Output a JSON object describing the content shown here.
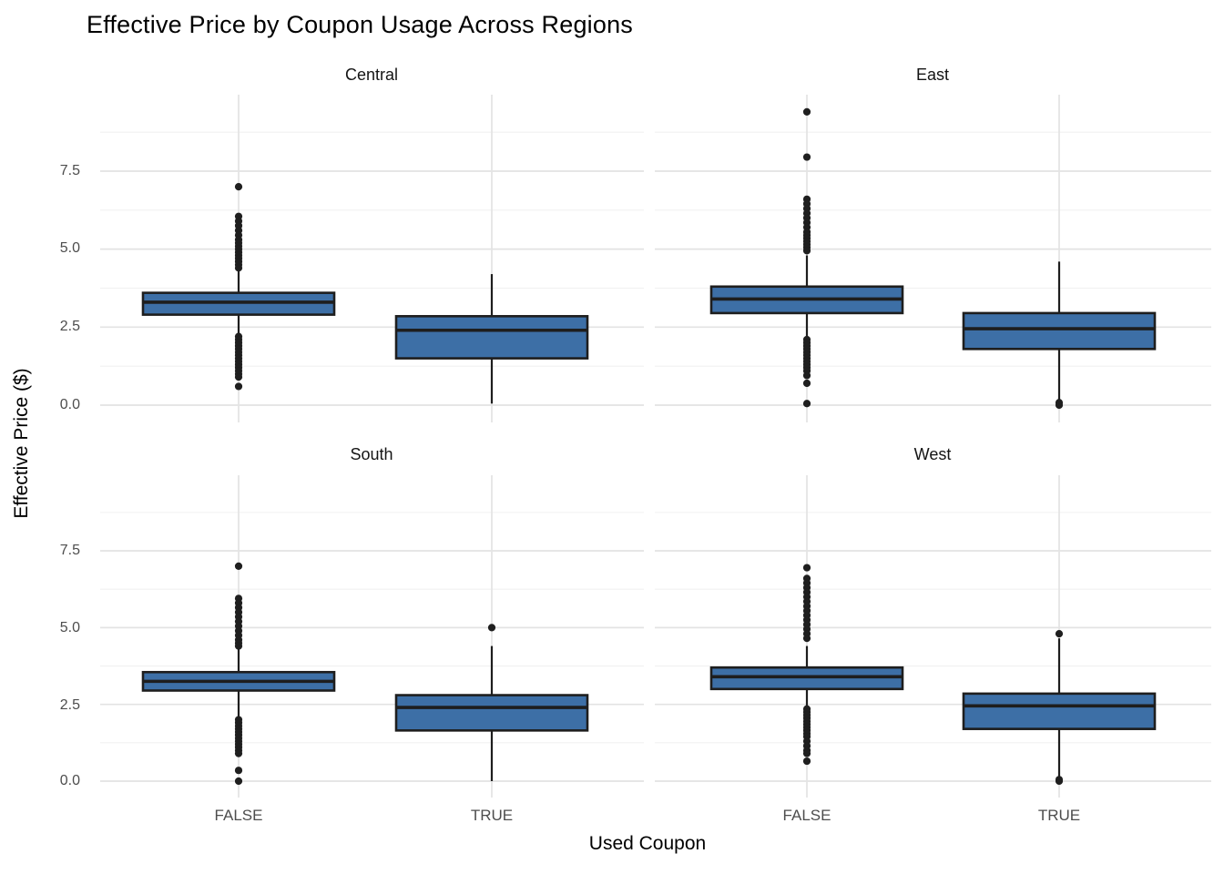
{
  "title": "Effective Price by Coupon Usage Across Regions",
  "x_axis_title": "Used Coupon",
  "y_axis_title": "Effective Price ($)",
  "x_categories": [
    "FALSE",
    "TRUE"
  ],
  "y_tick_labels": [
    "7.5",
    "5.0",
    "2.5",
    "0.0"
  ],
  "colors": {
    "box_fill": "#3d6fa6",
    "box_stroke": "#1e1e1e",
    "median": "#1e1e1e",
    "whisker": "#1e1e1e",
    "outlier": "#1f1f1f",
    "grid_major": "#e3e3e3",
    "grid_minor": "#f0f0f0",
    "text_dark": "#000000",
    "text_gray": "#4d4d4d"
  },
  "chart_data": {
    "type": "boxplot",
    "title": "Effective Price by Coupon Usage Across Regions",
    "xlabel": "Used Coupon",
    "ylabel": "Effective Price ($)",
    "categories": [
      "FALSE",
      "TRUE"
    ],
    "ylim": [
      -0.5,
      9.9
    ],
    "y_tick_values": [
      0.0,
      2.5,
      5.0,
      7.5
    ],
    "y_minor_values": [
      1.25,
      3.75,
      6.25,
      8.75
    ],
    "grid": true,
    "legend": "none",
    "facets": [
      {
        "name": "Central",
        "boxes": [
          {
            "category": "FALSE",
            "q1": 2.9,
            "median": 3.3,
            "q3": 3.6,
            "whisker_low": 2.25,
            "whisker_high": 4.3,
            "outliers": [
              7.0,
              6.05,
              5.9,
              5.75,
              5.6,
              5.45,
              5.3,
              5.2,
              5.1,
              5.0,
              4.9,
              4.8,
              4.7,
              4.6,
              4.5,
              4.4,
              2.2,
              2.1,
              2.0,
              1.9,
              1.8,
              1.7,
              1.6,
              1.5,
              1.4,
              1.3,
              1.2,
              1.1,
              1.0,
              0.9,
              0.6
            ]
          },
          {
            "category": "TRUE",
            "q1": 1.5,
            "median": 2.4,
            "q3": 2.85,
            "whisker_low": 0.05,
            "whisker_high": 4.2,
            "outliers": []
          }
        ]
      },
      {
        "name": "East",
        "boxes": [
          {
            "category": "FALSE",
            "q1": 2.95,
            "median": 3.4,
            "q3": 3.8,
            "whisker_low": 2.15,
            "whisker_high": 4.8,
            "outliers": [
              9.4,
              7.95,
              6.6,
              6.45,
              6.3,
              6.15,
              6.0,
              5.85,
              5.7,
              5.55,
              5.45,
              5.35,
              5.25,
              5.15,
              5.05,
              4.95,
              2.1,
              2.0,
              1.9,
              1.8,
              1.7,
              1.6,
              1.5,
              1.4,
              1.3,
              1.2,
              1.1,
              0.95,
              0.7,
              0.05
            ]
          },
          {
            "category": "TRUE",
            "q1": 1.8,
            "median": 2.45,
            "q3": 2.95,
            "whisker_low": 0.1,
            "whisker_high": 4.6,
            "outliers": [
              0.08,
              0.0
            ]
          }
        ]
      },
      {
        "name": "South",
        "boxes": [
          {
            "category": "FALSE",
            "q1": 2.95,
            "median": 3.25,
            "q3": 3.55,
            "whisker_low": 2.05,
            "whisker_high": 4.3,
            "outliers": [
              7.0,
              5.95,
              5.8,
              5.65,
              5.5,
              5.35,
              5.2,
              5.05,
              4.9,
              4.75,
              4.6,
              4.5,
              4.4,
              2.0,
              1.9,
              1.8,
              1.7,
              1.6,
              1.5,
              1.4,
              1.3,
              1.2,
              1.1,
              1.0,
              0.9,
              0.35,
              0.0
            ]
          },
          {
            "category": "TRUE",
            "q1": 1.65,
            "median": 2.4,
            "q3": 2.8,
            "whisker_low": 0.0,
            "whisker_high": 4.4,
            "outliers": [
              5.0
            ]
          }
        ]
      },
      {
        "name": "West",
        "boxes": [
          {
            "category": "FALSE",
            "q1": 3.0,
            "median": 3.4,
            "q3": 3.7,
            "whisker_low": 2.4,
            "whisker_high": 4.4,
            "outliers": [
              6.95,
              6.6,
              6.45,
              6.3,
              6.15,
              6.0,
              5.85,
              5.7,
              5.55,
              5.4,
              5.25,
              5.1,
              4.95,
              4.8,
              4.65,
              2.35,
              2.25,
              2.15,
              2.05,
              1.95,
              1.85,
              1.75,
              1.65,
              1.55,
              1.45,
              1.3,
              1.15,
              1.0,
              0.9,
              0.65
            ]
          },
          {
            "category": "TRUE",
            "q1": 1.7,
            "median": 2.45,
            "q3": 2.85,
            "whisker_low": 0.05,
            "whisker_high": 4.65,
            "outliers": [
              4.8,
              0.05,
              0.0
            ]
          }
        ]
      }
    ]
  }
}
